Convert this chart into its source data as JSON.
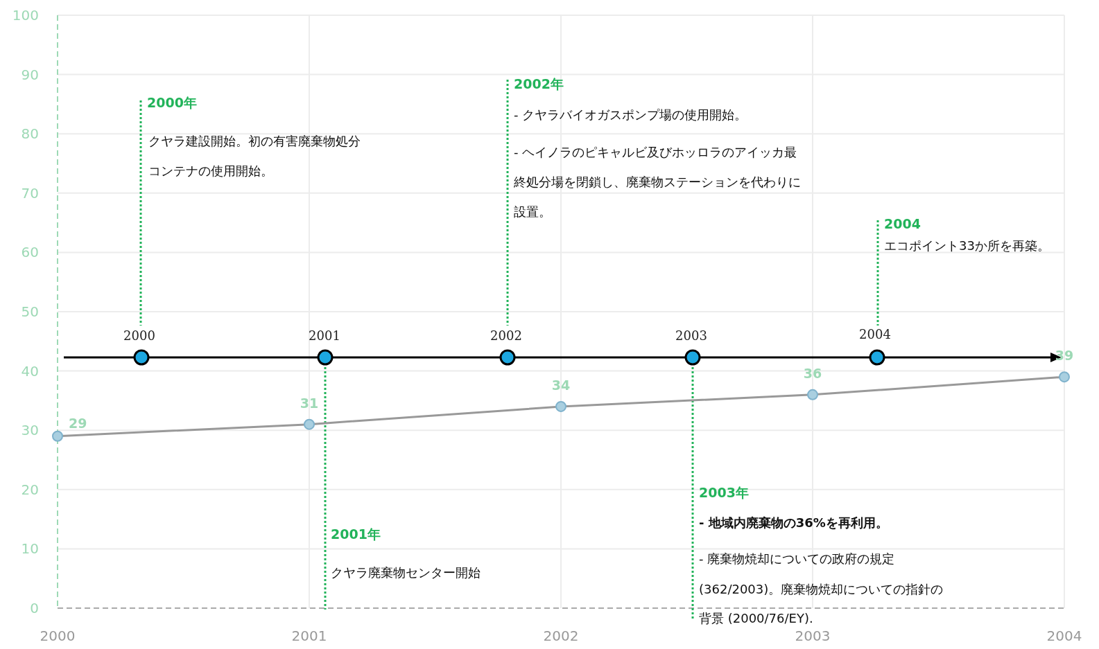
{
  "chart_data": {
    "type": "line",
    "categories": [
      "2000",
      "2001",
      "2002",
      "2003",
      "2004"
    ],
    "series": [
      {
        "color": "#999999",
        "values": [
          29,
          31,
          34,
          36,
          39
        ]
      }
    ],
    "marker": "circle",
    "data_labels": true,
    "grid": true,
    "ylim": [
      0,
      100
    ],
    "yticks": [
      0,
      10,
      20,
      30,
      40,
      50,
      60,
      70,
      80,
      90,
      100
    ],
    "annotations": [
      "2000",
      "2001",
      "2002",
      "2003",
      "2004",
      "2000年",
      "クヤラ建設開始。初の有害廃棄物処分",
      "コンテナの使用開始。",
      "2002年",
      "- クヤラバイオガスポンプ場の使用開始。",
      "- ヘイノラのピキャルビ及びホッロラのアイッカ最",
      "終処分場を閉鎖し、廃棄物ステーションを代わりに",
      "設置。",
      "2004",
      "エコポイント33か所を再築。",
      "2001年",
      "クヤラ廃棄物センター開始",
      "2003年",
      "- 地域内廃棄物の36%を再利用。",
      "- 廃棄物焼却についての政府の規定",
      "(362/2003)。廃棄物焼却についての指針の",
      "背景 (2000/76/EY)."
    ]
  }
}
